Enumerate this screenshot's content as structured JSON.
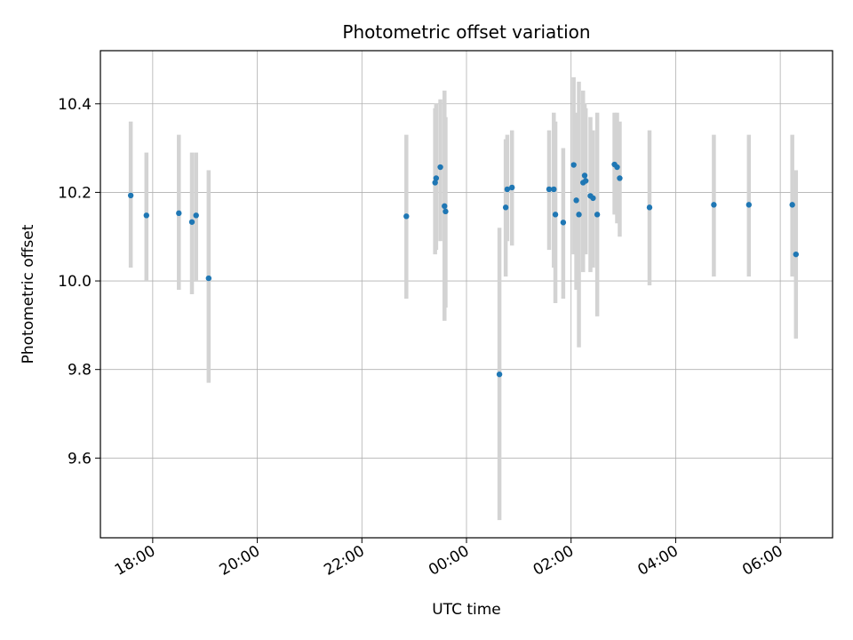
{
  "chart_data": {
    "type": "scatter",
    "title": "Photometric offset variation",
    "xlabel": "UTC time",
    "ylabel": "Photometric offset",
    "x_axis": "time (hours since 00:00 UTC; negative = previous evening)",
    "xlim": [
      -7.0,
      7.0
    ],
    "ylim": [
      9.42,
      10.52
    ],
    "xticks": [
      {
        "value": -6,
        "label": "18:00"
      },
      {
        "value": -4,
        "label": "20:00"
      },
      {
        "value": -2,
        "label": "22:00"
      },
      {
        "value": 0,
        "label": "00:00"
      },
      {
        "value": 2,
        "label": "02:00"
      },
      {
        "value": 4,
        "label": "04:00"
      },
      {
        "value": 6,
        "label": "06:00"
      }
    ],
    "yticks": [
      9.6,
      9.8,
      10.0,
      10.2,
      10.4
    ],
    "grid": true,
    "series": [
      {
        "name": "offset",
        "color": "#1f77b4",
        "errorbar_color": "#d3d3d3",
        "points": [
          {
            "x": -6.42,
            "y": 10.193,
            "lo": 10.03,
            "hi": 10.36
          },
          {
            "x": -6.12,
            "y": 10.148,
            "lo": 10.0,
            "hi": 10.29
          },
          {
            "x": -5.5,
            "y": 10.153,
            "lo": 9.98,
            "hi": 10.33
          },
          {
            "x": -5.25,
            "y": 10.133,
            "lo": 9.97,
            "hi": 10.29
          },
          {
            "x": -5.17,
            "y": 10.148,
            "lo": 10.0,
            "hi": 10.29
          },
          {
            "x": -4.93,
            "y": 10.006,
            "lo": 9.77,
            "hi": 10.25
          },
          {
            "x": -1.15,
            "y": 10.146,
            "lo": 9.96,
            "hi": 10.33
          },
          {
            "x": -0.6,
            "y": 10.222,
            "lo": 10.06,
            "hi": 10.39
          },
          {
            "x": -0.58,
            "y": 10.232,
            "lo": 10.07,
            "hi": 10.4
          },
          {
            "x": -0.5,
            "y": 10.257,
            "lo": 10.09,
            "hi": 10.41
          },
          {
            "x": -0.42,
            "y": 10.169,
            "lo": 9.91,
            "hi": 10.43
          },
          {
            "x": -0.4,
            "y": 10.157,
            "lo": 9.94,
            "hi": 10.37
          },
          {
            "x": 0.63,
            "y": 9.789,
            "lo": 9.46,
            "hi": 10.12
          },
          {
            "x": 0.75,
            "y": 10.166,
            "lo": 10.01,
            "hi": 10.32
          },
          {
            "x": 0.78,
            "y": 10.207,
            "lo": 10.09,
            "hi": 10.33
          },
          {
            "x": 0.87,
            "y": 10.211,
            "lo": 10.08,
            "hi": 10.34
          },
          {
            "x": 1.58,
            "y": 10.207,
            "lo": 10.07,
            "hi": 10.34
          },
          {
            "x": 1.67,
            "y": 10.207,
            "lo": 10.03,
            "hi": 10.38
          },
          {
            "x": 1.7,
            "y": 10.15,
            "lo": 9.95,
            "hi": 10.36
          },
          {
            "x": 1.85,
            "y": 10.132,
            "lo": 9.96,
            "hi": 10.3
          },
          {
            "x": 2.05,
            "y": 10.262,
            "lo": 10.06,
            "hi": 10.46
          },
          {
            "x": 2.1,
            "y": 10.182,
            "lo": 9.98,
            "hi": 10.38
          },
          {
            "x": 2.15,
            "y": 10.15,
            "lo": 9.85,
            "hi": 10.45
          },
          {
            "x": 2.23,
            "y": 10.222,
            "lo": 10.02,
            "hi": 10.43
          },
          {
            "x": 2.26,
            "y": 10.238,
            "lo": 10.08,
            "hi": 10.4
          },
          {
            "x": 2.28,
            "y": 10.226,
            "lo": 10.06,
            "hi": 10.39
          },
          {
            "x": 2.37,
            "y": 10.192,
            "lo": 10.02,
            "hi": 10.37
          },
          {
            "x": 2.42,
            "y": 10.187,
            "lo": 10.03,
            "hi": 10.34
          },
          {
            "x": 2.5,
            "y": 10.15,
            "lo": 9.92,
            "hi": 10.38
          },
          {
            "x": 2.83,
            "y": 10.263,
            "lo": 10.15,
            "hi": 10.38
          },
          {
            "x": 2.88,
            "y": 10.257,
            "lo": 10.13,
            "hi": 10.38
          },
          {
            "x": 2.93,
            "y": 10.232,
            "lo": 10.1,
            "hi": 10.36
          },
          {
            "x": 3.5,
            "y": 10.166,
            "lo": 9.99,
            "hi": 10.34
          },
          {
            "x": 4.73,
            "y": 10.172,
            "lo": 10.01,
            "hi": 10.33
          },
          {
            "x": 5.4,
            "y": 10.172,
            "lo": 10.01,
            "hi": 10.33
          },
          {
            "x": 6.23,
            "y": 10.172,
            "lo": 10.01,
            "hi": 10.33
          },
          {
            "x": 6.3,
            "y": 10.06,
            "lo": 9.87,
            "hi": 10.25
          }
        ]
      }
    ]
  }
}
